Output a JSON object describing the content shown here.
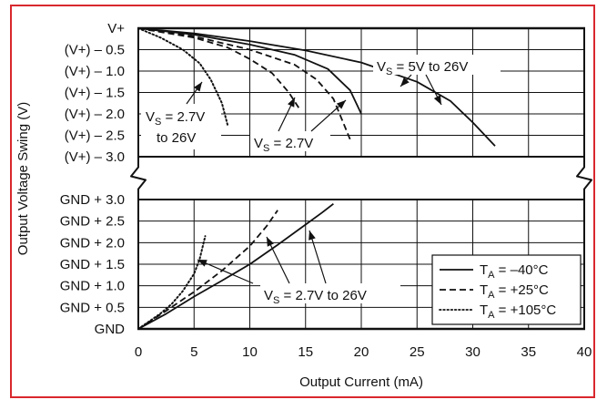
{
  "colors": {
    "frame": "#d8282e",
    "ink": "#111111"
  },
  "chart_data": {
    "type": "line",
    "x_axis": {
      "label": "Output Current (mA)",
      "range": [
        0,
        40
      ],
      "ticks": [
        0,
        5,
        10,
        15,
        20,
        25,
        30,
        35,
        40
      ],
      "grid": true
    },
    "y_axis": {
      "label": "Output Voltage Swing (V)",
      "upper_panel": {
        "description": "swing below V+ (V)",
        "range": [
          0,
          3.0
        ],
        "ticks": [
          0,
          0.5,
          1.0,
          1.5,
          2.0,
          2.5,
          3.0
        ],
        "tick_labels": [
          "V+",
          "(V+) – 0.5",
          "(V+) – 1.0",
          "(V+) – 1.5",
          "(V+) – 2.0",
          "(V+) – 2.5",
          "(V+) – 3.0"
        ]
      },
      "lower_panel": {
        "description": "swing above GND (V)",
        "range": [
          0,
          3.0
        ],
        "ticks": [
          0,
          0.5,
          1.0,
          1.5,
          2.0,
          2.5,
          3.0
        ],
        "tick_labels": [
          "GND",
          "GND + 0.5",
          "GND + 1.0",
          "GND + 1.5",
          "GND + 2.0",
          "GND + 2.5",
          "GND + 3.0"
        ]
      },
      "grid": true,
      "axis_break": true
    },
    "legend": {
      "placement": "bottom-right",
      "entries": [
        {
          "label": "TA = –40°C",
          "style": "solid"
        },
        {
          "label": "TA = +25°C",
          "style": "dashed"
        },
        {
          "label": "TA = +105°C",
          "style": "dotted"
        }
      ]
    },
    "annotations": {
      "upper_left": [
        "VS = 2.7V",
        "to 26V"
      ],
      "upper_mid": "VS = 2.7V",
      "upper_right": "VS = 5V to 26V",
      "lower": "VS = 2.7V to 26V"
    },
    "series": [
      {
        "panel": "upper",
        "style": "solid",
        "x": [
          0,
          5,
          10,
          15,
          20,
          25,
          28,
          30,
          32
        ],
        "y": [
          0,
          0.12,
          0.3,
          0.52,
          0.8,
          1.25,
          1.7,
          2.2,
          2.75
        ]
      },
      {
        "panel": "upper",
        "style": "solid",
        "x": [
          0,
          5,
          10,
          14,
          17,
          19,
          20
        ],
        "y": [
          0,
          0.15,
          0.38,
          0.62,
          0.95,
          1.45,
          2.0
        ]
      },
      {
        "panel": "upper",
        "style": "dashed",
        "x": [
          0,
          5,
          10,
          14,
          16,
          17.5,
          19
        ],
        "y": [
          0,
          0.19,
          0.5,
          0.85,
          1.2,
          1.65,
          2.6
        ]
      },
      {
        "panel": "upper",
        "style": "dashed",
        "x": [
          0,
          5,
          8,
          10,
          12,
          13.5,
          14.5
        ],
        "y": [
          0,
          0.22,
          0.45,
          0.72,
          1.05,
          1.5,
          1.9
        ]
      },
      {
        "panel": "upper",
        "style": "dotted",
        "x": [
          0,
          2,
          4,
          5.5,
          6.5,
          7.5,
          8
        ],
        "y": [
          0,
          0.22,
          0.5,
          0.82,
          1.2,
          1.75,
          2.25
        ]
      },
      {
        "panel": "lower",
        "style": "solid",
        "x": [
          0,
          2.5,
          5,
          7.5,
          10,
          12.5,
          15,
          16.5,
          17.5
        ],
        "y": [
          0,
          0.35,
          0.75,
          1.12,
          1.5,
          1.95,
          2.42,
          2.7,
          2.9
        ]
      },
      {
        "panel": "lower",
        "style": "dashed",
        "x": [
          0,
          2.5,
          5,
          7.5,
          10,
          11.5,
          12.5
        ],
        "y": [
          0,
          0.42,
          0.86,
          1.35,
          1.92,
          2.38,
          2.75
        ]
      },
      {
        "panel": "lower",
        "style": "dotted",
        "x": [
          0,
          1,
          2,
          3,
          4,
          5,
          5.5,
          6
        ],
        "y": [
          0,
          0.18,
          0.36,
          0.58,
          0.88,
          1.28,
          1.62,
          2.15
        ]
      }
    ]
  }
}
